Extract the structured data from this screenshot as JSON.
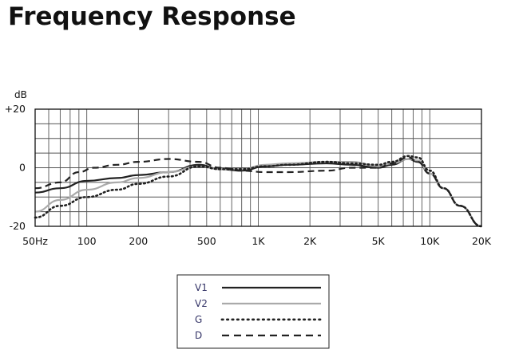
{
  "page_title": "Frequency Response",
  "chart_data": {
    "type": "line",
    "title": "Frequency Response",
    "ylabel": "dB",
    "xscale": "log",
    "xlim": [
      50,
      20000
    ],
    "ylim": [
      -20,
      20
    ],
    "grid": true,
    "legend_position": "bottom-center",
    "x_ticks": [
      {
        "value": 50,
        "label": "50Hz"
      },
      {
        "value": 100,
        "label": "100"
      },
      {
        "value": 200,
        "label": "200"
      },
      {
        "value": 500,
        "label": "500"
      },
      {
        "value": 1000,
        "label": "1K"
      },
      {
        "value": 2000,
        "label": "2K"
      },
      {
        "value": 5000,
        "label": "5K"
      },
      {
        "value": 10000,
        "label": "10K"
      },
      {
        "value": 20000,
        "label": "20K"
      }
    ],
    "y_ticks": [
      {
        "value": 20,
        "label": "+20"
      },
      {
        "value": 0,
        "label": "0"
      },
      {
        "value": -20,
        "label": "-20"
      }
    ],
    "series": [
      {
        "name": "V1",
        "color": "#222222",
        "style": "solid",
        "points": [
          [
            50,
            -8.5
          ],
          [
            70,
            -7
          ],
          [
            100,
            -4.5
          ],
          [
            150,
            -3.5
          ],
          [
            200,
            -2.5
          ],
          [
            300,
            -1.5
          ],
          [
            450,
            1
          ],
          [
            600,
            -0.5
          ],
          [
            800,
            -1
          ],
          [
            1100,
            0.5
          ],
          [
            1500,
            1
          ],
          [
            2500,
            1.5
          ],
          [
            3500,
            1
          ],
          [
            5000,
            0
          ],
          [
            6000,
            1
          ],
          [
            7500,
            3
          ],
          [
            8500,
            2
          ],
          [
            10000,
            -2
          ],
          [
            12000,
            -7
          ],
          [
            15000,
            -13
          ],
          [
            20000,
            -20
          ]
        ]
      },
      {
        "name": "V2",
        "color": "#aaaaaa",
        "style": "solid",
        "points": [
          [
            50,
            -15
          ],
          [
            70,
            -11
          ],
          [
            100,
            -7.5
          ],
          [
            150,
            -5
          ],
          [
            200,
            -3.5
          ],
          [
            300,
            -1.5
          ],
          [
            450,
            0.5
          ],
          [
            600,
            -0.5
          ],
          [
            800,
            -0.5
          ],
          [
            1100,
            1
          ],
          [
            1500,
            1.5
          ],
          [
            2500,
            2
          ],
          [
            3500,
            2
          ],
          [
            5000,
            0.5
          ],
          [
            6000,
            1.5
          ],
          [
            7500,
            3
          ],
          [
            8500,
            2.5
          ],
          [
            10000,
            -2
          ],
          [
            12000,
            -7
          ],
          [
            15000,
            -13
          ],
          [
            20000,
            -20
          ]
        ]
      },
      {
        "name": "G",
        "color": "#222222",
        "style": "dotted",
        "points": [
          [
            50,
            -17
          ],
          [
            70,
            -13
          ],
          [
            100,
            -10
          ],
          [
            150,
            -7.5
          ],
          [
            200,
            -5.5
          ],
          [
            300,
            -3
          ],
          [
            450,
            0.5
          ],
          [
            600,
            -0.5
          ],
          [
            800,
            -0.5
          ],
          [
            1100,
            0.5
          ],
          [
            1500,
            1
          ],
          [
            2500,
            2
          ],
          [
            3500,
            1.5
          ],
          [
            5000,
            1
          ],
          [
            6000,
            2
          ],
          [
            7500,
            4
          ],
          [
            8500,
            3.5
          ],
          [
            10000,
            -1
          ],
          [
            12000,
            -7
          ],
          [
            15000,
            -13
          ],
          [
            20000,
            -20
          ]
        ]
      },
      {
        "name": "D",
        "color": "#222222",
        "style": "dashed",
        "points": [
          [
            50,
            -7
          ],
          [
            70,
            -5
          ],
          [
            90,
            -1.5
          ],
          [
            110,
            0
          ],
          [
            150,
            1
          ],
          [
            200,
            2
          ],
          [
            300,
            3
          ],
          [
            450,
            2
          ],
          [
            600,
            0
          ],
          [
            800,
            -1
          ],
          [
            1100,
            -1.5
          ],
          [
            1500,
            -1.5
          ],
          [
            2500,
            -1
          ],
          [
            3500,
            0
          ],
          [
            5000,
            0
          ],
          [
            6000,
            1.5
          ],
          [
            7500,
            3.5
          ],
          [
            8500,
            2
          ],
          [
            10000,
            -2
          ],
          [
            12000,
            -7
          ],
          [
            15000,
            -13
          ],
          [
            20000,
            -20
          ]
        ]
      }
    ]
  }
}
